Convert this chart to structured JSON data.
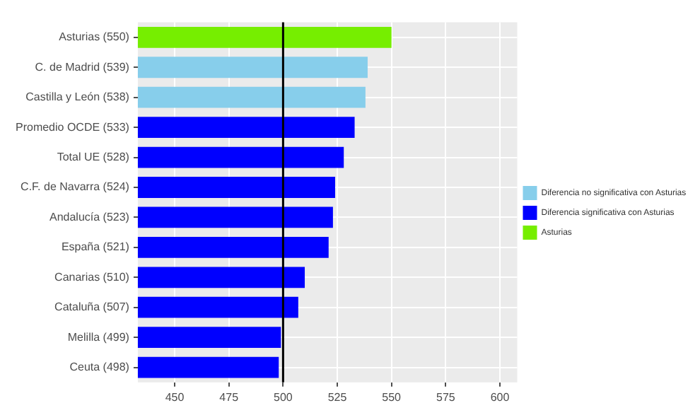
{
  "chart_data": {
    "type": "bar",
    "orientation": "horizontal",
    "categories": [
      "Asturias (550)",
      "C. de Madrid (539)",
      "Castilla y León (538)",
      "Promedio OCDE (533)",
      "Total UE (528)",
      "C.F. de Navarra (524)",
      "Andalucía (523)",
      "España (521)",
      "Canarias (510)",
      "Cataluña (507)",
      "Melilla (499)",
      "Ceuta (498)"
    ],
    "series": [
      {
        "name": "Diferencia no significativa con Asturias",
        "color": "#87ceeb",
        "values": [
          null,
          539,
          538,
          null,
          null,
          null,
          null,
          null,
          null,
          null,
          null,
          null
        ]
      },
      {
        "name": "Diferencia significativa con Asturias",
        "color": "#0000ff",
        "values": [
          null,
          null,
          null,
          533,
          528,
          524,
          523,
          521,
          510,
          507,
          499,
          498
        ]
      },
      {
        "name": "Asturias",
        "color": "#76ee00",
        "values": [
          550,
          null,
          null,
          null,
          null,
          null,
          null,
          null,
          null,
          null,
          null,
          null
        ]
      }
    ],
    "xlim": [
      433,
      608
    ],
    "xticks": [
      450,
      475,
      500,
      525,
      550,
      575,
      600
    ],
    "ref_lines": [
      {
        "axis": "x",
        "value": 500,
        "color": "#000000"
      }
    ],
    "grid": true,
    "legend": "right"
  }
}
